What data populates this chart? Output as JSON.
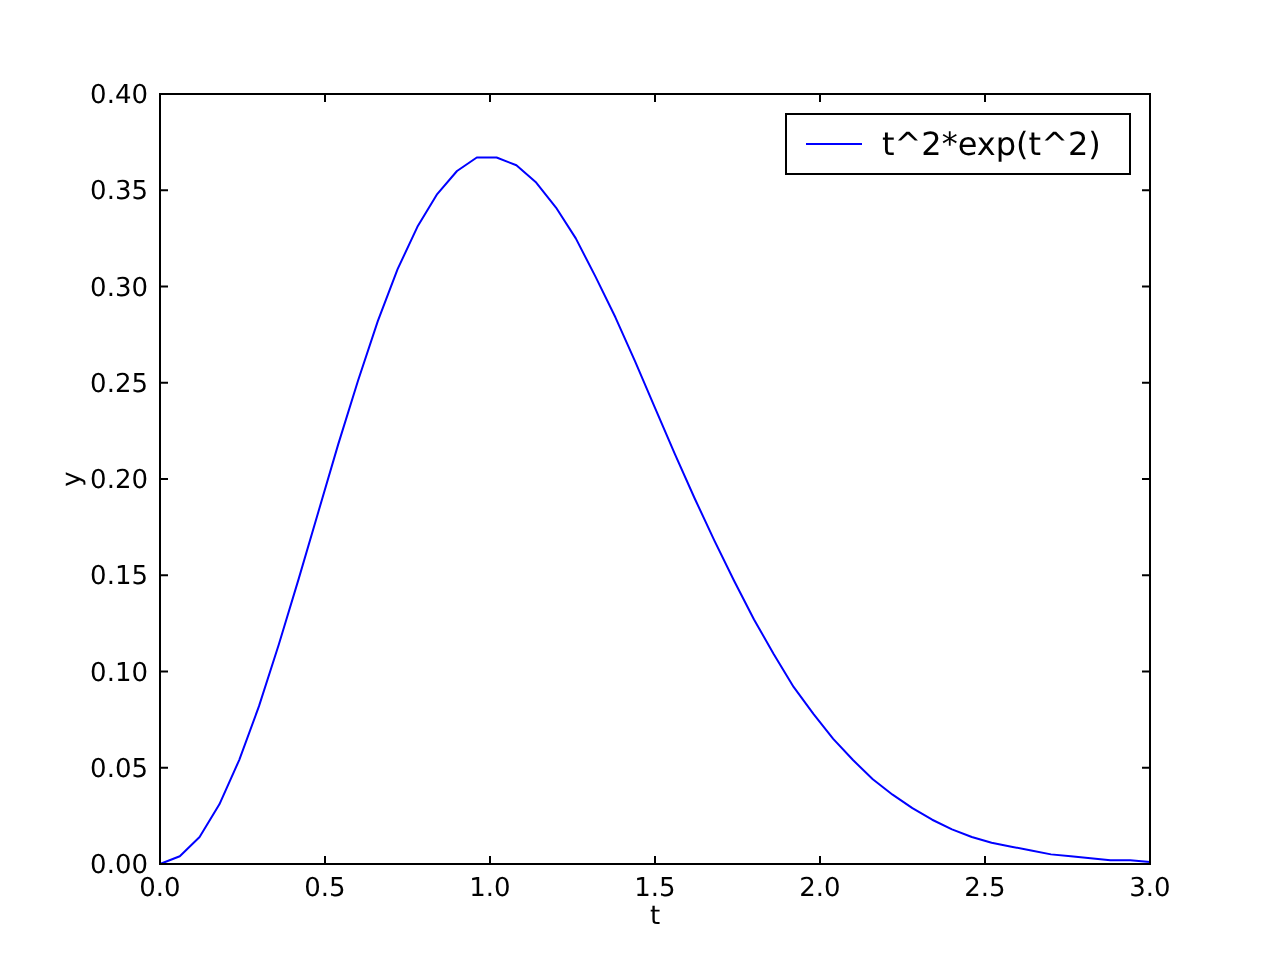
{
  "chart_data": {
    "type": "line",
    "xlabel": "t",
    "ylabel": "y",
    "x": [
      0,
      0.06,
      0.12,
      0.18,
      0.24,
      0.3,
      0.36,
      0.42,
      0.48,
      0.54,
      0.6,
      0.66,
      0.72,
      0.78,
      0.84,
      0.9,
      0.96,
      1.02,
      1.08,
      1.14,
      1.2,
      1.26,
      1.32,
      1.38,
      1.44,
      1.5,
      1.56,
      1.62,
      1.68,
      1.74,
      1.8,
      1.86,
      1.92,
      1.98,
      2.04,
      2.1,
      2.16,
      2.22,
      2.28,
      2.34,
      2.4,
      2.46,
      2.52,
      2.58,
      2.64,
      2.7,
      2.76,
      2.82,
      2.88,
      2.94,
      3.0
    ],
    "series": [
      {
        "name": "t^2*exp(t^2)",
        "color": "#0000ff",
        "values": [
          0,
          0.004,
          0.014,
          0.031,
          0.054,
          0.082,
          0.114,
          0.148,
          0.183,
          0.218,
          0.251,
          0.282,
          0.309,
          0.331,
          0.348,
          0.36,
          0.367,
          0.367,
          0.363,
          0.354,
          0.341,
          0.325,
          0.305,
          0.284,
          0.261,
          0.237,
          0.213,
          0.19,
          0.168,
          0.147,
          0.127,
          0.109,
          0.092,
          0.078,
          0.065,
          0.054,
          0.044,
          0.036,
          0.029,
          0.023,
          0.018,
          0.014,
          0.011,
          0.009,
          0.007,
          0.005,
          0.004,
          0.003,
          0.002,
          0.002,
          0.001
        ]
      }
    ],
    "xlim": [
      0,
      3
    ],
    "ylim": [
      0,
      0.4
    ],
    "xticks": [
      {
        "value": 0,
        "label": "0.0"
      },
      {
        "value": 0.5,
        "label": "0.5"
      },
      {
        "value": 1,
        "label": "1.0"
      },
      {
        "value": 1.5,
        "label": "1.5"
      },
      {
        "value": 2,
        "label": "2.0"
      },
      {
        "value": 2.5,
        "label": "2.5"
      },
      {
        "value": 3,
        "label": "3.0"
      }
    ],
    "yticks": [
      {
        "value": 0,
        "label": "0.00"
      },
      {
        "value": 0.05,
        "label": "0.05"
      },
      {
        "value": 0.1,
        "label": "0.10"
      },
      {
        "value": 0.15,
        "label": "0.15"
      },
      {
        "value": 0.2,
        "label": "0.20"
      },
      {
        "value": 0.25,
        "label": "0.25"
      },
      {
        "value": 0.3,
        "label": "0.30"
      },
      {
        "value": 0.35,
        "label": "0.35"
      },
      {
        "value": 0.4,
        "label": "0.40"
      }
    ],
    "legend": "top right",
    "grid": false,
    "line_style": "solid",
    "marker": "none"
  }
}
